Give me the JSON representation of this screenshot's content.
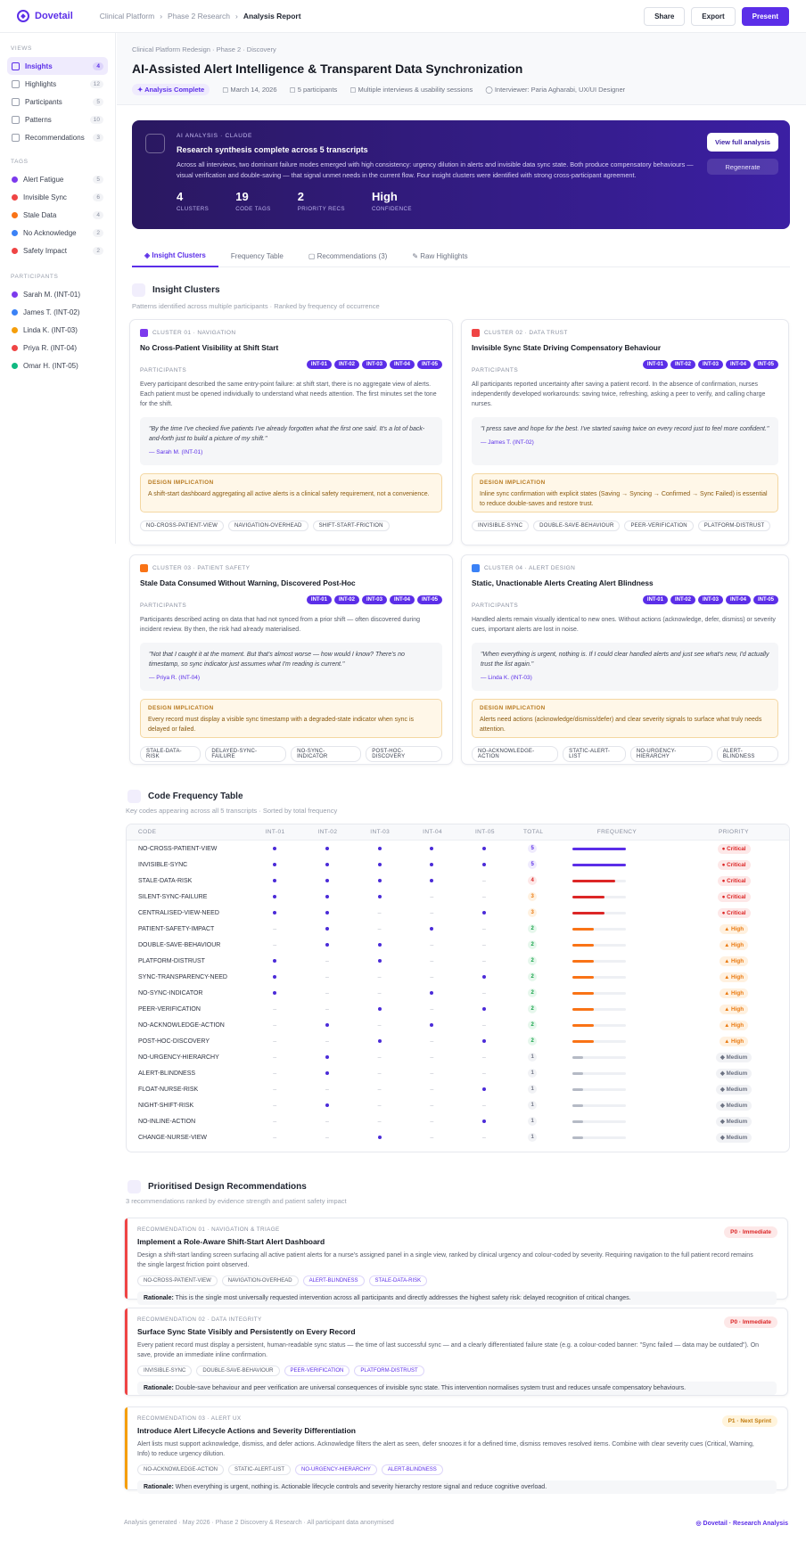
{
  "app": {
    "name": "Dovetail"
  },
  "breadcrumb": [
    "Clinical Platform",
    "Phase 2 Research",
    "Analysis Report"
  ],
  "top_actions": {
    "share": "Share",
    "export": "Export",
    "present": "Present"
  },
  "sidebar": {
    "views_heading": "VIEWS",
    "views": [
      {
        "label": "Insights",
        "count": "4"
      },
      {
        "label": "Highlights",
        "count": "12"
      },
      {
        "label": "Participants",
        "count": "5"
      },
      {
        "label": "Patterns",
        "count": "10"
      },
      {
        "label": "Recommendations",
        "count": "3"
      }
    ],
    "tags_heading": "TAGS",
    "tags": [
      {
        "label": "Alert Fatigue",
        "count": "5",
        "color": "#7c3aed"
      },
      {
        "label": "Invisible Sync",
        "count": "6",
        "color": "#ef4444"
      },
      {
        "label": "Stale Data",
        "count": "4",
        "color": "#f97316"
      },
      {
        "label": "No Acknowledge",
        "count": "2",
        "color": "#3b82f6"
      },
      {
        "label": "Safety Impact",
        "count": "2",
        "color": "#ef4444"
      }
    ],
    "participants_heading": "PARTICIPANTS",
    "participants": [
      {
        "label": "Sarah M. (INT-01)",
        "color": "#7c3aed"
      },
      {
        "label": "James T. (INT-02)",
        "color": "#3b82f6"
      },
      {
        "label": "Linda K. (INT-03)",
        "color": "#f59e0b"
      },
      {
        "label": "Priya R. (INT-04)",
        "color": "#ef4444"
      },
      {
        "label": "Omar H. (INT-05)",
        "color": "#10b981"
      }
    ]
  },
  "header": {
    "sub_crumb": "Clinical Platform Redesign · Phase 2 · Discovery",
    "title": "AI-Assisted Alert Intelligence & Transparent Data Synchronization",
    "status": "Analysis Complete",
    "date": "March 14, 2026",
    "participants": "5 participants",
    "method": "Multiple interviews & usability sessions",
    "interviewer": "Interviewer: Paria Agharabi, UX/UI Designer"
  },
  "ai": {
    "tag": "AI ANALYSIS · CLAUDE",
    "title": "Research synthesis complete across 5 transcripts",
    "body": "Across all interviews, two dominant failure modes emerged with high consistency: urgency dilution in alerts and invisible data sync state. Both produce compensatory behaviours — visual verification and double-saving — that signal unmet needs in the current flow. Four insight clusters were identified with strong cross-participant agreement.",
    "stats": [
      {
        "n": "4",
        "l": "Clusters"
      },
      {
        "n": "19",
        "l": "Code tags"
      },
      {
        "n": "2",
        "l": "Priority recs"
      },
      {
        "n": "High",
        "l": "Confidence"
      }
    ],
    "btn_view": "View full analysis",
    "btn_regen": "Regenerate"
  },
  "tabs": [
    "Insight Clusters",
    "Frequency Table",
    "Recommendations (3)",
    "Raw Highlights"
  ],
  "clusters_section": {
    "title": "Insight Clusters",
    "sub": "Patterns identified across multiple participants · Ranked by frequency of occurrence"
  },
  "participant_label": "PARTICIPANTS",
  "impl_label": "DESIGN IMPLICATION",
  "clusters": [
    {
      "kicker": "CLUSTER 01 · NAVIGATION",
      "color": "#7c3aed",
      "title": "No Cross-Patient Visibility at Shift Start",
      "pills": [
        "INT-01",
        "INT-02",
        "INT-03",
        "INT-04",
        "INT-05"
      ],
      "body": "Every participant described the same entry-point failure: at shift start, there is no aggregate view of alerts. Each patient must be opened individually to understand what needs attention. The first minutes set the tone for the shift.",
      "quote": "\"By the time I've checked five patients I've already forgotten what the first one said. It's a lot of back-and-forth just to build a picture of my shift.\"",
      "who": "— Sarah M. (INT-01)",
      "impl": "A shift-start dashboard aggregating all active alerts is a clinical safety requirement, not a convenience.",
      "chips": [
        "NO-CROSS-PATIENT-VIEW",
        "NAVIGATION-OVERHEAD",
        "SHIFT-START-FRICTION"
      ]
    },
    {
      "kicker": "CLUSTER 02 · DATA TRUST",
      "color": "#ef4444",
      "title": "Invisible Sync State Driving Compensatory Behaviour",
      "pills": [
        "INT-01",
        "INT-02",
        "INT-03",
        "INT-04",
        "INT-05"
      ],
      "body": "All participants reported uncertainty after saving a patient record. In the absence of confirmation, nurses independently developed workarounds: saving twice, refreshing, asking a peer to verify, and calling charge nurses.",
      "quote": "\"I press save and hope for the best. I've started saving twice on every record just to feel more confident.\"",
      "who": "— James T. (INT-02)",
      "impl": "Inline sync confirmation with explicit states (Saving → Syncing → Confirmed → Sync Failed) is essential to reduce double-saves and restore trust.",
      "chips": [
        "INVISIBLE-SYNC",
        "DOUBLE-SAVE-BEHAVIOUR",
        "PEER-VERIFICATION",
        "PLATFORM-DISTRUST"
      ]
    },
    {
      "kicker": "CLUSTER 03 · PATIENT SAFETY",
      "color": "#f97316",
      "title": "Stale Data Consumed Without Warning, Discovered Post-Hoc",
      "pills": [
        "INT-01",
        "INT-02",
        "INT-03",
        "INT-04",
        "INT-05"
      ],
      "body": "Participants described acting on data that had not synced from a prior shift — often discovered during incident review. By then, the risk had already materialised.",
      "quote": "\"Not that I caught it at the moment. But that's almost worse — how would I know? There's no timestamp, so sync indicator just assumes what I'm reading is current.\"",
      "who": "— Priya R. (INT-04)",
      "impl": "Every record must display a visible sync timestamp with a degraded-state indicator when sync is delayed or failed.",
      "chips": [
        "STALE-DATA-RISK",
        "DELAYED-SYNC-FAILURE",
        "NO-SYNC-INDICATOR",
        "POST-HOC-DISCOVERY"
      ]
    },
    {
      "kicker": "CLUSTER 04 · ALERT DESIGN",
      "color": "#3b82f6",
      "title": "Static, Unactionable Alerts Creating Alert Blindness",
      "pills": [
        "INT-01",
        "INT-02",
        "INT-03",
        "INT-04",
        "INT-05"
      ],
      "body": "Handled alerts remain visually identical to new ones. Without actions (acknowledge, defer, dismiss) or severity cues, important alerts are lost in noise.",
      "quote": "\"When everything is urgent, nothing is. If I could clear handled alerts and just see what's new, I'd actually trust the list again.\"",
      "who": "— Linda K. (INT-03)",
      "impl": "Alerts need actions (acknowledge/dismiss/defer) and clear severity signals to surface what truly needs attention.",
      "chips": [
        "NO-ACKNOWLEDGE-ACTION",
        "STATIC-ALERT-LIST",
        "NO-URGENCY-HIERARCHY",
        "ALERT-BLINDNESS"
      ]
    }
  ],
  "freq_section": {
    "title": "Code Frequency Table",
    "sub": "Key codes appearing across all 5 transcripts · Sorted by total frequency"
  },
  "freq_headers": [
    "CODE",
    "INT-01",
    "INT-02",
    "INT-03",
    "INT-04",
    "INT-05",
    "TOTAL",
    "FREQUENCY",
    "PRIORITY"
  ],
  "freq_rows": [
    {
      "code": "NO-CROSS-PATIENT-VIEW",
      "marks": [
        1,
        1,
        1,
        1,
        1
      ],
      "total": 5,
      "priority": "Critical"
    },
    {
      "code": "INVISIBLE-SYNC",
      "marks": [
        1,
        1,
        1,
        1,
        1
      ],
      "total": 5,
      "priority": "Critical"
    },
    {
      "code": "STALE-DATA-RISK",
      "marks": [
        1,
        1,
        1,
        1,
        0
      ],
      "total": 4,
      "priority": "Critical"
    },
    {
      "code": "SILENT-SYNC-FAILURE",
      "marks": [
        1,
        1,
        1,
        0,
        0
      ],
      "total": 3,
      "priority": "Critical"
    },
    {
      "code": "CENTRALISED-VIEW-NEED",
      "marks": [
        1,
        1,
        0,
        0,
        1
      ],
      "total": 3,
      "priority": "Critical"
    },
    {
      "code": "PATIENT-SAFETY-IMPACT",
      "marks": [
        0,
        1,
        0,
        1,
        0
      ],
      "total": 2,
      "priority": "High"
    },
    {
      "code": "DOUBLE-SAVE-BEHAVIOUR",
      "marks": [
        0,
        1,
        1,
        0,
        0
      ],
      "total": 2,
      "priority": "High"
    },
    {
      "code": "PLATFORM-DISTRUST",
      "marks": [
        1,
        0,
        1,
        0,
        0
      ],
      "total": 2,
      "priority": "High"
    },
    {
      "code": "SYNC-TRANSPARENCY-NEED",
      "marks": [
        1,
        0,
        0,
        0,
        1
      ],
      "total": 2,
      "priority": "High"
    },
    {
      "code": "NO-SYNC-INDICATOR",
      "marks": [
        1,
        0,
        0,
        1,
        0
      ],
      "total": 2,
      "priority": "High"
    },
    {
      "code": "PEER-VERIFICATION",
      "marks": [
        0,
        0,
        1,
        0,
        1
      ],
      "total": 2,
      "priority": "High"
    },
    {
      "code": "NO-ACKNOWLEDGE-ACTION",
      "marks": [
        0,
        1,
        0,
        1,
        0
      ],
      "total": 2,
      "priority": "High"
    },
    {
      "code": "POST-HOC-DISCOVERY",
      "marks": [
        0,
        0,
        1,
        0,
        1
      ],
      "total": 2,
      "priority": "High"
    },
    {
      "code": "NO-URGENCY-HIERARCHY",
      "marks": [
        0,
        1,
        0,
        0,
        0
      ],
      "total": 1,
      "priority": "Medium"
    },
    {
      "code": "ALERT-BLINDNESS",
      "marks": [
        0,
        1,
        0,
        0,
        0
      ],
      "total": 1,
      "priority": "Medium"
    },
    {
      "code": "FLOAT-NURSE-RISK",
      "marks": [
        0,
        0,
        0,
        0,
        1
      ],
      "total": 1,
      "priority": "Medium"
    },
    {
      "code": "NIGHT-SHIFT-RISK",
      "marks": [
        0,
        1,
        0,
        0,
        0
      ],
      "total": 1,
      "priority": "Medium"
    },
    {
      "code": "NO-INLINE-ACTION",
      "marks": [
        0,
        0,
        0,
        0,
        1
      ],
      "total": 1,
      "priority": "Medium"
    },
    {
      "code": "CHANGE-NURSE-VIEW",
      "marks": [
        0,
        0,
        1,
        0,
        0
      ],
      "total": 1,
      "priority": "Medium"
    }
  ],
  "rec_section": {
    "title": "Prioritised Design Recommendations",
    "sub": "3 recommendations ranked by evidence strength and patient safety impact"
  },
  "rationale_label": "Rationale:",
  "recs": [
    {
      "kicker": "RECOMMENDATION 01 · NAVIGATION & TRIAGE",
      "title": "Implement a Role-Aware Shift-Start Alert Dashboard",
      "priority": "P0 · Immediate",
      "stripe": "#ef4444",
      "body": "Design a shift-start landing screen surfacing all active patient alerts for a nurse's assigned panel in a single view, ranked by clinical urgency and colour-coded by severity. Requiring navigation to the full patient record remains the single largest friction point observed.",
      "tags": [
        "NO-CROSS-PATIENT-VIEW",
        "NAVIGATION-OVERHEAD",
        "ALERT-BLINDNESS",
        "STALE-DATA-RISK"
      ],
      "rationale": "This is the single most universally requested intervention across all participants and directly addresses the highest safety risk: delayed recognition of critical changes."
    },
    {
      "kicker": "RECOMMENDATION 02 · DATA INTEGRITY",
      "title": "Surface Sync State Visibly and Persistently on Every Record",
      "priority": "P0 · Immediate",
      "stripe": "#ef4444",
      "body": "Every patient record must display a persistent, human-readable sync status — the time of last successful sync — and a clearly differentiated failure state (e.g. a colour-coded banner: \"Sync failed — data may be outdated\"). On save, provide an immediate inline confirmation.",
      "tags": [
        "INVISIBLE-SYNC",
        "DOUBLE-SAVE-BEHAVIOUR",
        "PEER-VERIFICATION",
        "PLATFORM-DISTRUST"
      ],
      "rationale": "Double-save behaviour and peer verification are universal consequences of invisible sync state. This intervention normalises system trust and reduces unsafe compensatory behaviours."
    },
    {
      "kicker": "RECOMMENDATION 03 · ALERT UX",
      "title": "Introduce Alert Lifecycle Actions and Severity Differentiation",
      "priority": "P1 · Next Sprint",
      "stripe": "#f59e0b",
      "body": "Alert lists must support acknowledge, dismiss, and defer actions. Acknowledge filters the alert as seen, defer snoozes it for a defined time, dismiss removes resolved items. Combine with clear severity cues (Critical, Warning, Info) to reduce urgency dilution.",
      "tags": [
        "NO-ACKNOWLEDGE-ACTION",
        "STATIC-ALERT-LIST",
        "NO-URGENCY-HIERARCHY",
        "ALERT-BLINDNESS"
      ],
      "rationale": "When everything is urgent, nothing is. Actionable lifecycle controls and severity hierarchy restore signal and reduce cognitive overload."
    }
  ],
  "footer": {
    "left": "Analysis generated · May 2026 · Phase 2 Discovery & Research · All participant data anonymised",
    "right": "Dovetail · Research Analysis"
  },
  "colors": {
    "accent": "#5b2ee8",
    "critical": "#dc2626",
    "high": "#f97316",
    "medium": "#9aa0ad"
  }
}
